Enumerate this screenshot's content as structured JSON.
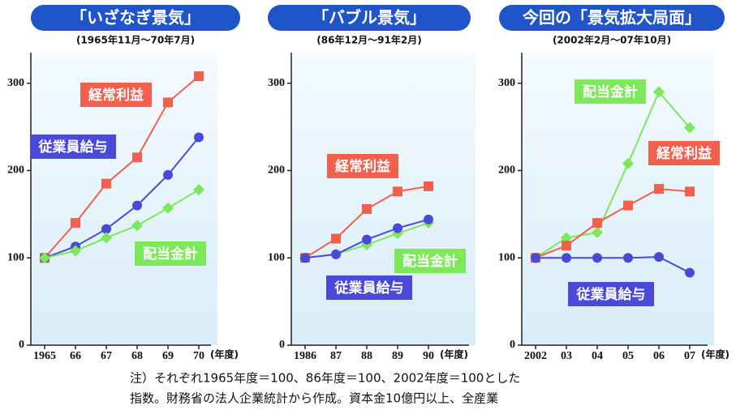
{
  "chart_data": [
    {
      "type": "line",
      "title": "「いざなぎ景気」",
      "subtitle": "(1965年11月～70年7月)",
      "x_label": "(年度)",
      "categories": [
        "1965",
        "66",
        "67",
        "68",
        "69",
        "70"
      ],
      "ylim": [
        0,
        335
      ],
      "yticks": [
        0,
        100,
        200,
        300
      ],
      "series": [
        {
          "name": "経常利益",
          "color": "#f0604c",
          "marker": "square",
          "values": [
            100,
            140,
            185,
            215,
            278,
            308
          ]
        },
        {
          "name": "従業員給与",
          "color": "#4a4ad8",
          "marker": "circle",
          "values": [
            100,
            113,
            133,
            160,
            195,
            238
          ]
        },
        {
          "name": "配当金計",
          "color": "#7ce85a",
          "marker": "diamond",
          "values": [
            100,
            108,
            123,
            137,
            157,
            178
          ]
        }
      ]
    },
    {
      "type": "line",
      "title": "「バブル景気」",
      "subtitle": "(86年12月～91年2月)",
      "x_label": "(年度)",
      "categories": [
        "1986",
        "87",
        "88",
        "89",
        "90"
      ],
      "ylim": [
        0,
        335
      ],
      "yticks": [
        0,
        100,
        200,
        300
      ],
      "series": [
        {
          "name": "経常利益",
          "color": "#f0604c",
          "marker": "square",
          "values": [
            100,
            122,
            156,
            176,
            182
          ]
        },
        {
          "name": "配当金計",
          "color": "#7ce85a",
          "marker": "diamond",
          "values": [
            100,
            104,
            115,
            128,
            140
          ]
        },
        {
          "name": "従業員給与",
          "color": "#4a4ad8",
          "marker": "circle",
          "values": [
            100,
            104,
            121,
            134,
            144
          ]
        }
      ]
    },
    {
      "type": "line",
      "title": "今回の「景気拡大局面」",
      "subtitle": "(2002年2月～07年10月)",
      "x_label": "(年度)",
      "categories": [
        "2002",
        "03",
        "04",
        "05",
        "06",
        "07"
      ],
      "ylim": [
        0,
        335
      ],
      "yticks": [
        0,
        100,
        200,
        300
      ],
      "series": [
        {
          "name": "配当金計",
          "color": "#7ce85a",
          "marker": "diamond",
          "values": [
            100,
            123,
            129,
            208,
            290,
            249
          ]
        },
        {
          "name": "経常利益",
          "color": "#f0604c",
          "marker": "square",
          "values": [
            100,
            114,
            140,
            160,
            179,
            176
          ]
        },
        {
          "name": "従業員給与",
          "color": "#4a4ad8",
          "marker": "circle",
          "values": [
            100,
            100,
            100,
            100,
            101,
            83
          ]
        }
      ]
    }
  ],
  "note": {
    "lines": [
      "注）それぞれ1965年度＝100、86年度＝100、2002年度＝100とした",
      "指数。財務省の法人企業統計から作成。資本金10億円以上、全産業"
    ]
  }
}
